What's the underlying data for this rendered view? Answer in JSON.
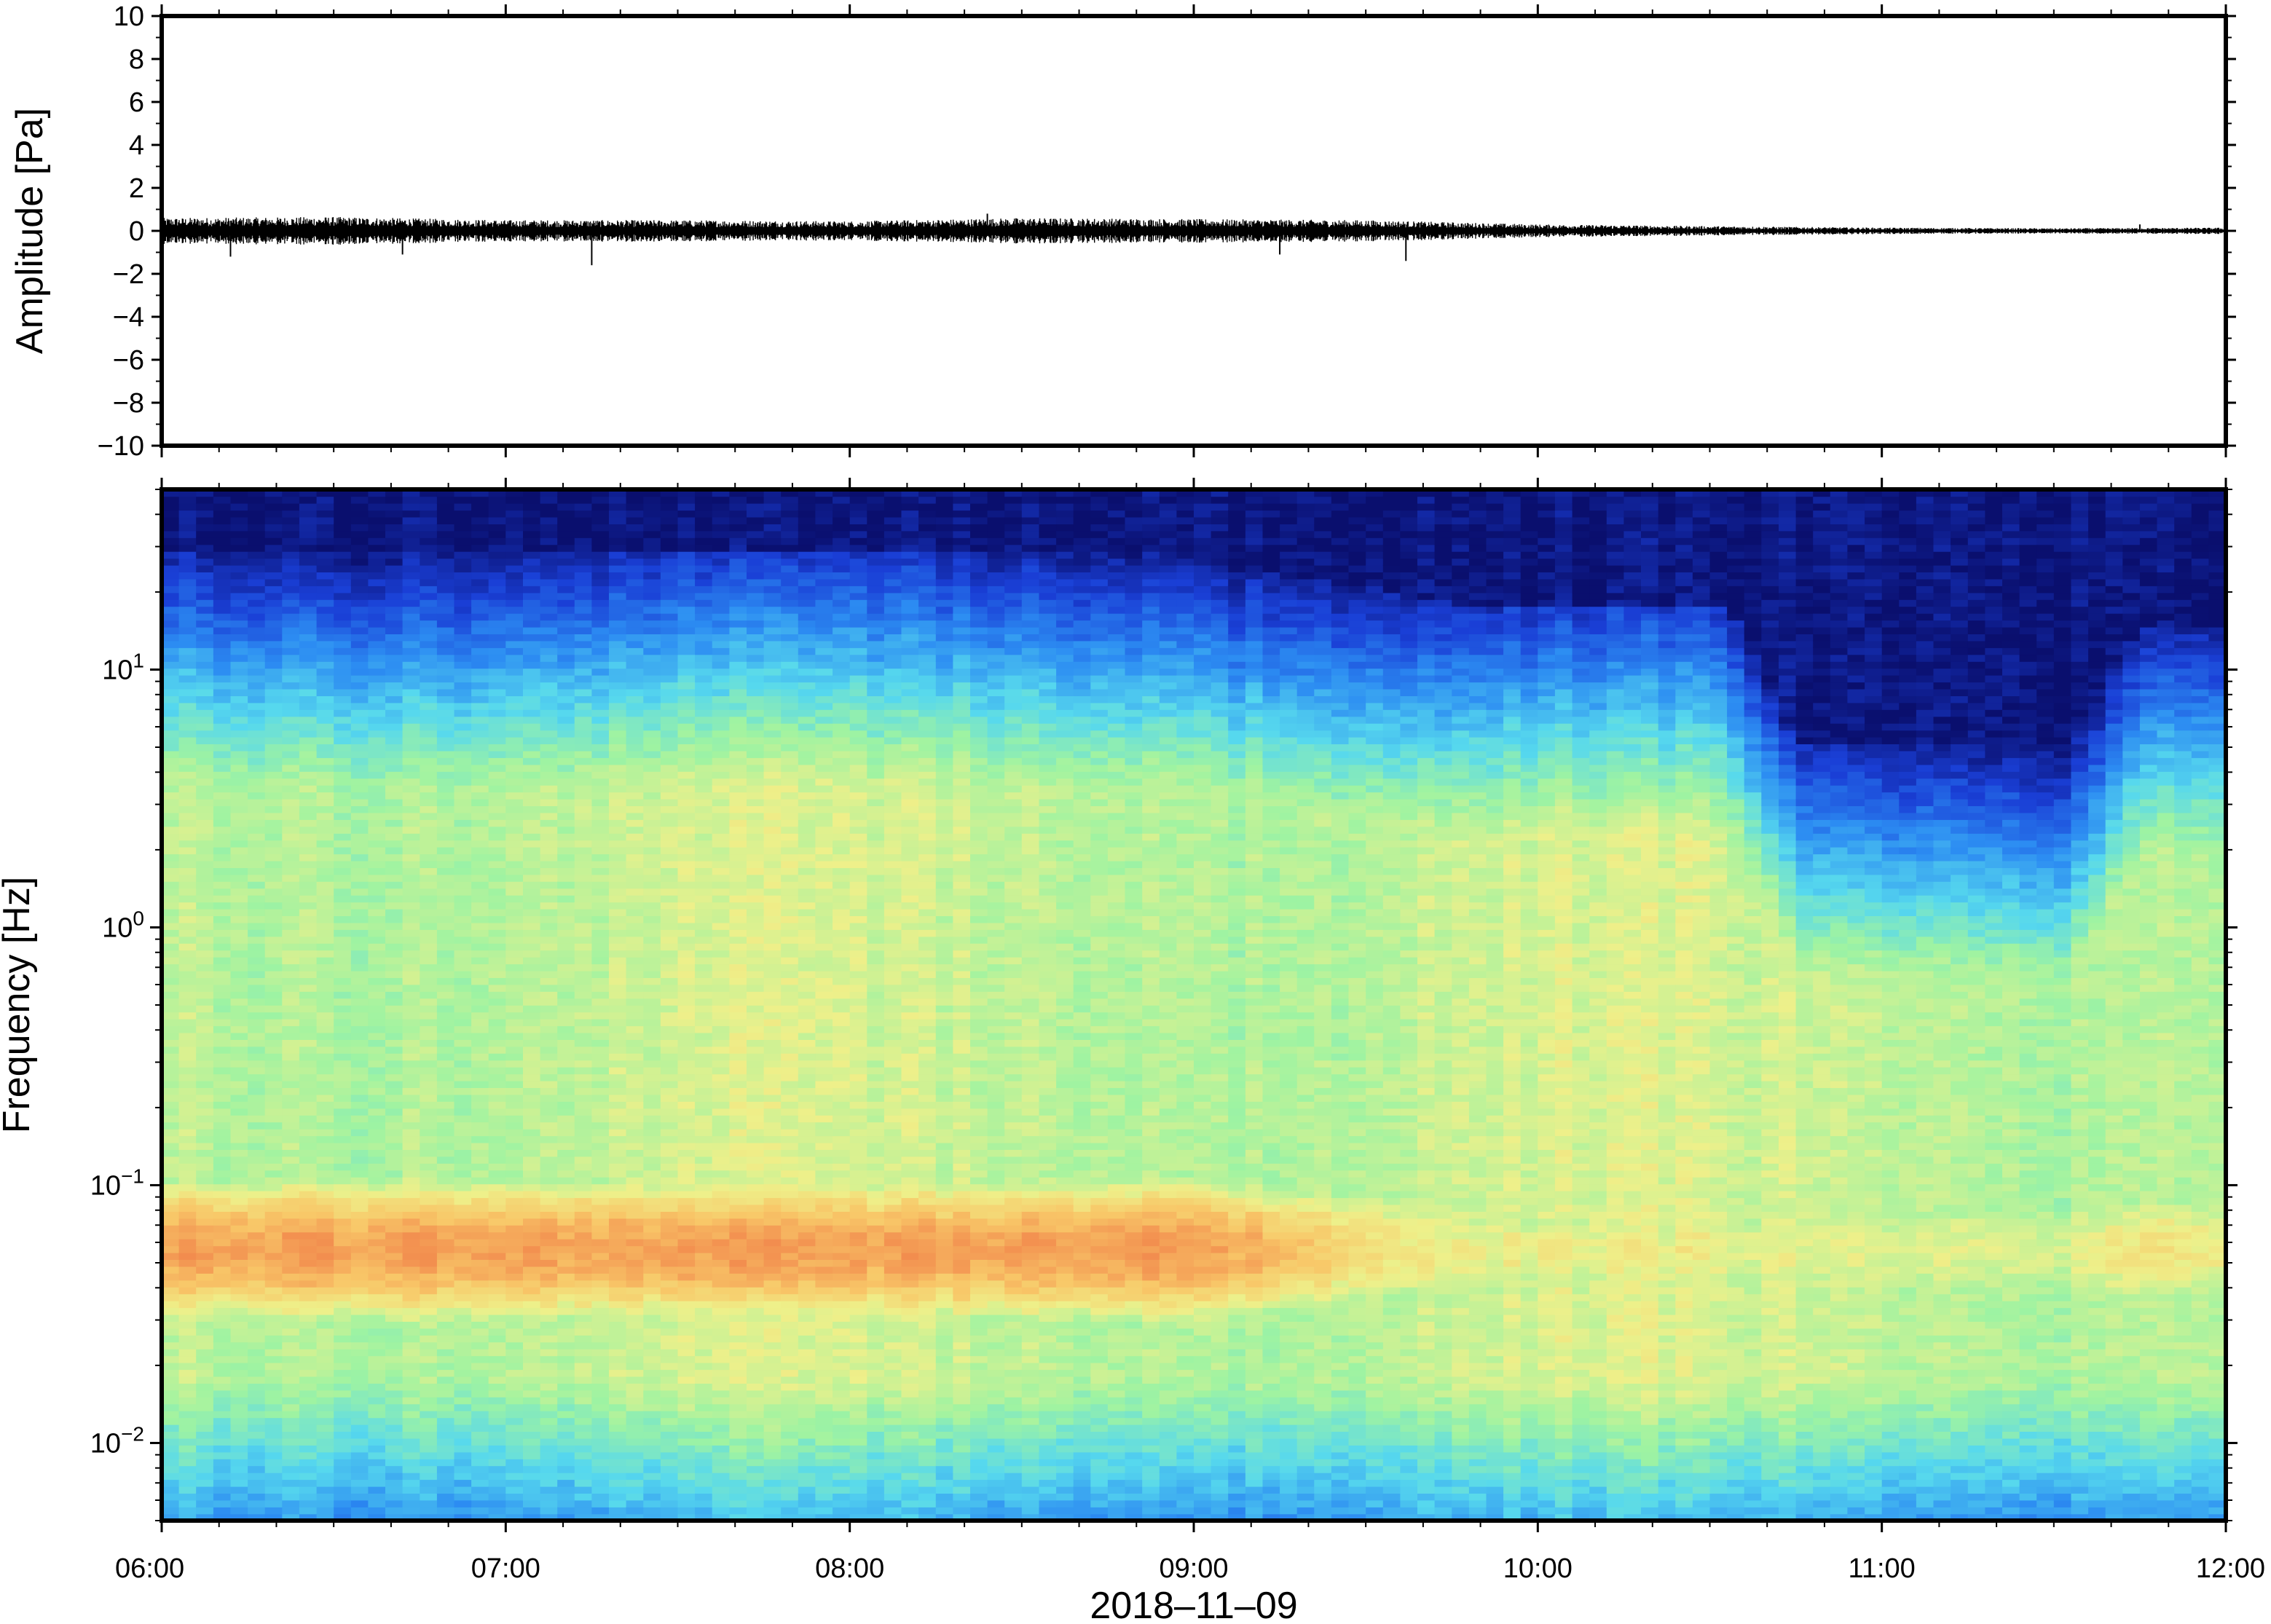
{
  "chart_data": [
    {
      "type": "line",
      "title": "",
      "xlabel": "",
      "ylabel": "Amplitude [Pa]",
      "ylim": [
        -10,
        10
      ],
      "y_ticks": [
        -10,
        -8,
        -6,
        -4,
        -2,
        0,
        2,
        4,
        6,
        8,
        10
      ],
      "y_tick_labels": [
        "−10",
        "−8",
        "−6",
        "−4",
        "−2",
        "0",
        "2",
        "4",
        "6",
        "8",
        "10"
      ],
      "x_range": [
        "06:00",
        "12:00"
      ],
      "grid": false,
      "series": [
        {
          "color": "#000000",
          "envelope_x": [
            "06:00",
            "06:30",
            "07:00",
            "07:30",
            "08:00",
            "08:30",
            "09:00",
            "09:30",
            "10:00",
            "10:30",
            "11:00",
            "11:30",
            "12:00"
          ],
          "envelope_amplitude": [
            0.6,
            0.65,
            0.5,
            0.5,
            0.45,
            0.6,
            0.55,
            0.5,
            0.3,
            0.22,
            0.15,
            0.12,
            0.15
          ],
          "spikes": [
            {
              "x": "06:12",
              "y": -1.2
            },
            {
              "x": "06:42",
              "y": -1.1
            },
            {
              "x": "07:15",
              "y": -1.6
            },
            {
              "x": "08:24",
              "y": 0.8
            },
            {
              "x": "09:15",
              "y": -1.1
            },
            {
              "x": "09:37",
              "y": -1.4
            },
            {
              "x": "11:45",
              "y": 0.3
            }
          ]
        }
      ]
    },
    {
      "type": "heatmap",
      "title": "",
      "xlabel": "2018–11–09",
      "ylabel": "Frequency [Hz]",
      "y_scale": "log",
      "ylim": [
        0.005,
        50
      ],
      "y_ticks": [
        0.01,
        0.1,
        1,
        10
      ],
      "y_tick_labels": [
        {
          "base": "10",
          "exp": "−2"
        },
        {
          "base": "10",
          "exp": "−1"
        },
        {
          "base": "10",
          "exp": "0"
        },
        {
          "base": "10",
          "exp": "1"
        }
      ],
      "x_ticks": [
        "06:00",
        "07:00",
        "08:00",
        "09:00",
        "10:00",
        "11:00",
        "12:00"
      ],
      "colormap": "jet",
      "colormap_stops": [
        "#0a0f6e",
        "#1a3fd6",
        "#2c8cf2",
        "#56d8ee",
        "#9ef3a2",
        "#eef08a",
        "#f8c768",
        "#f28c4e"
      ],
      "grid": false,
      "regimes": [
        {
          "x_start": "06:00",
          "x_end": "09:45",
          "cutoff_hz": 28,
          "microseism_level": 0.95
        },
        {
          "x_start": "09:45",
          "x_end": "10:45",
          "cutoff_hz": 18,
          "microseism_level": 0.72
        },
        {
          "x_start": "10:45",
          "x_end": "11:45",
          "cutoff_hz": 5,
          "microseism_level": 0.68
        },
        {
          "x_start": "11:45",
          "x_end": "12:00",
          "cutoff_hz": 15,
          "microseism_level": 0.75
        }
      ]
    }
  ]
}
